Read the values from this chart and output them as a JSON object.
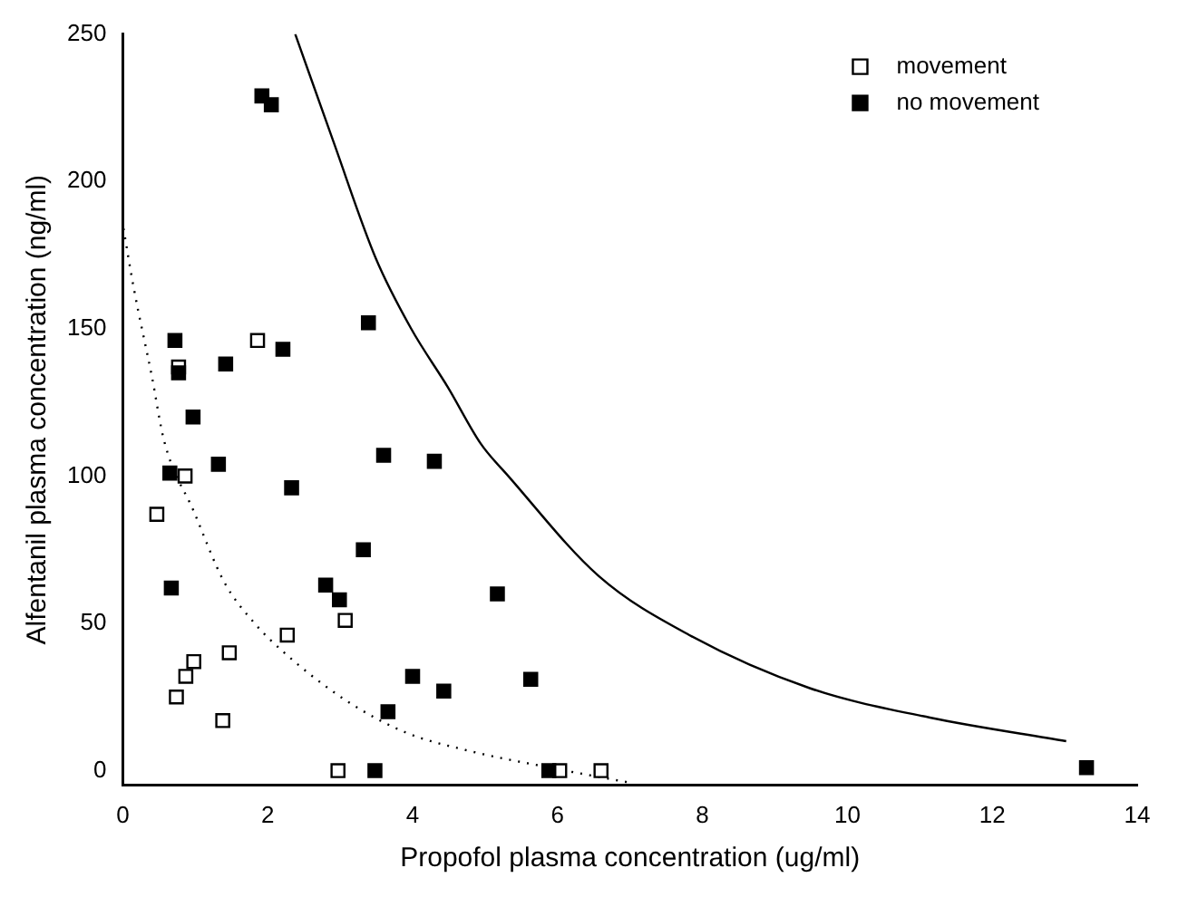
{
  "chart_data": {
    "type": "scatter",
    "xlabel": "Propofol plasma concentration (ug/ml)",
    "ylabel": "Alfentanil plasma concentration (ng/ml)",
    "xlim": [
      0,
      14
    ],
    "xticks": [
      0,
      2,
      4,
      6,
      8,
      10,
      12,
      14
    ],
    "ylim": [
      -5,
      250
    ],
    "yticks": [
      0,
      50,
      100,
      150,
      200,
      250
    ],
    "grid": false,
    "legend": "top right",
    "marker": "square",
    "series": [
      {
        "name": "movement",
        "color": "#ffffff",
        "x": [
          1.86,
          0.77,
          0.86,
          0.47,
          3.07,
          2.27,
          1.47,
          0.98,
          0.87,
          0.74,
          1.38,
          2.97,
          6.03,
          6.6
        ],
        "values": [
          146,
          137,
          100,
          87,
          51,
          46,
          40,
          37,
          32,
          25,
          17,
          0,
          0,
          0
        ]
      },
      {
        "name": "no movement",
        "color": "#000000",
        "x": [
          1.92,
          2.05,
          3.39,
          0.72,
          2.21,
          1.42,
          0.77,
          0.97,
          0.65,
          1.32,
          2.33,
          3.6,
          4.3,
          3.32,
          0.67,
          2.8,
          2.99,
          5.17,
          4.0,
          4.43,
          5.63,
          3.66,
          3.48,
          5.88,
          13.3
        ],
        "values": [
          229,
          226,
          152,
          146,
          143,
          138,
          135,
          120,
          101,
          104,
          96,
          107,
          105,
          75,
          62,
          63,
          58,
          60,
          32,
          27,
          31,
          20,
          0,
          0,
          1
        ]
      },
      {
        "type": "line",
        "color": "#000000",
        "line_style": "solid",
        "marker": "none",
        "x": [
          2.38,
          2.9,
          3.49,
          3.98,
          4.49,
          4.94,
          5.32,
          6.57,
          7.82,
          9.48,
          11.14,
          13.02
        ],
        "values": [
          250,
          214,
          174,
          150,
          130,
          111,
          100,
          66,
          46,
          28,
          18,
          10
        ]
      },
      {
        "type": "line",
        "color": "#000000",
        "line_style": "dotted",
        "marker": "none",
        "x": [
          0.01,
          0.15,
          0.4,
          0.57,
          0.98,
          1.4,
          1.82,
          2.23,
          3.07,
          3.9,
          4.73,
          5.9,
          6.98
        ],
        "values": [
          184,
          164,
          134,
          112,
          88,
          64,
          50,
          40,
          24,
          13,
          7,
          1,
          -4
        ]
      }
    ]
  }
}
